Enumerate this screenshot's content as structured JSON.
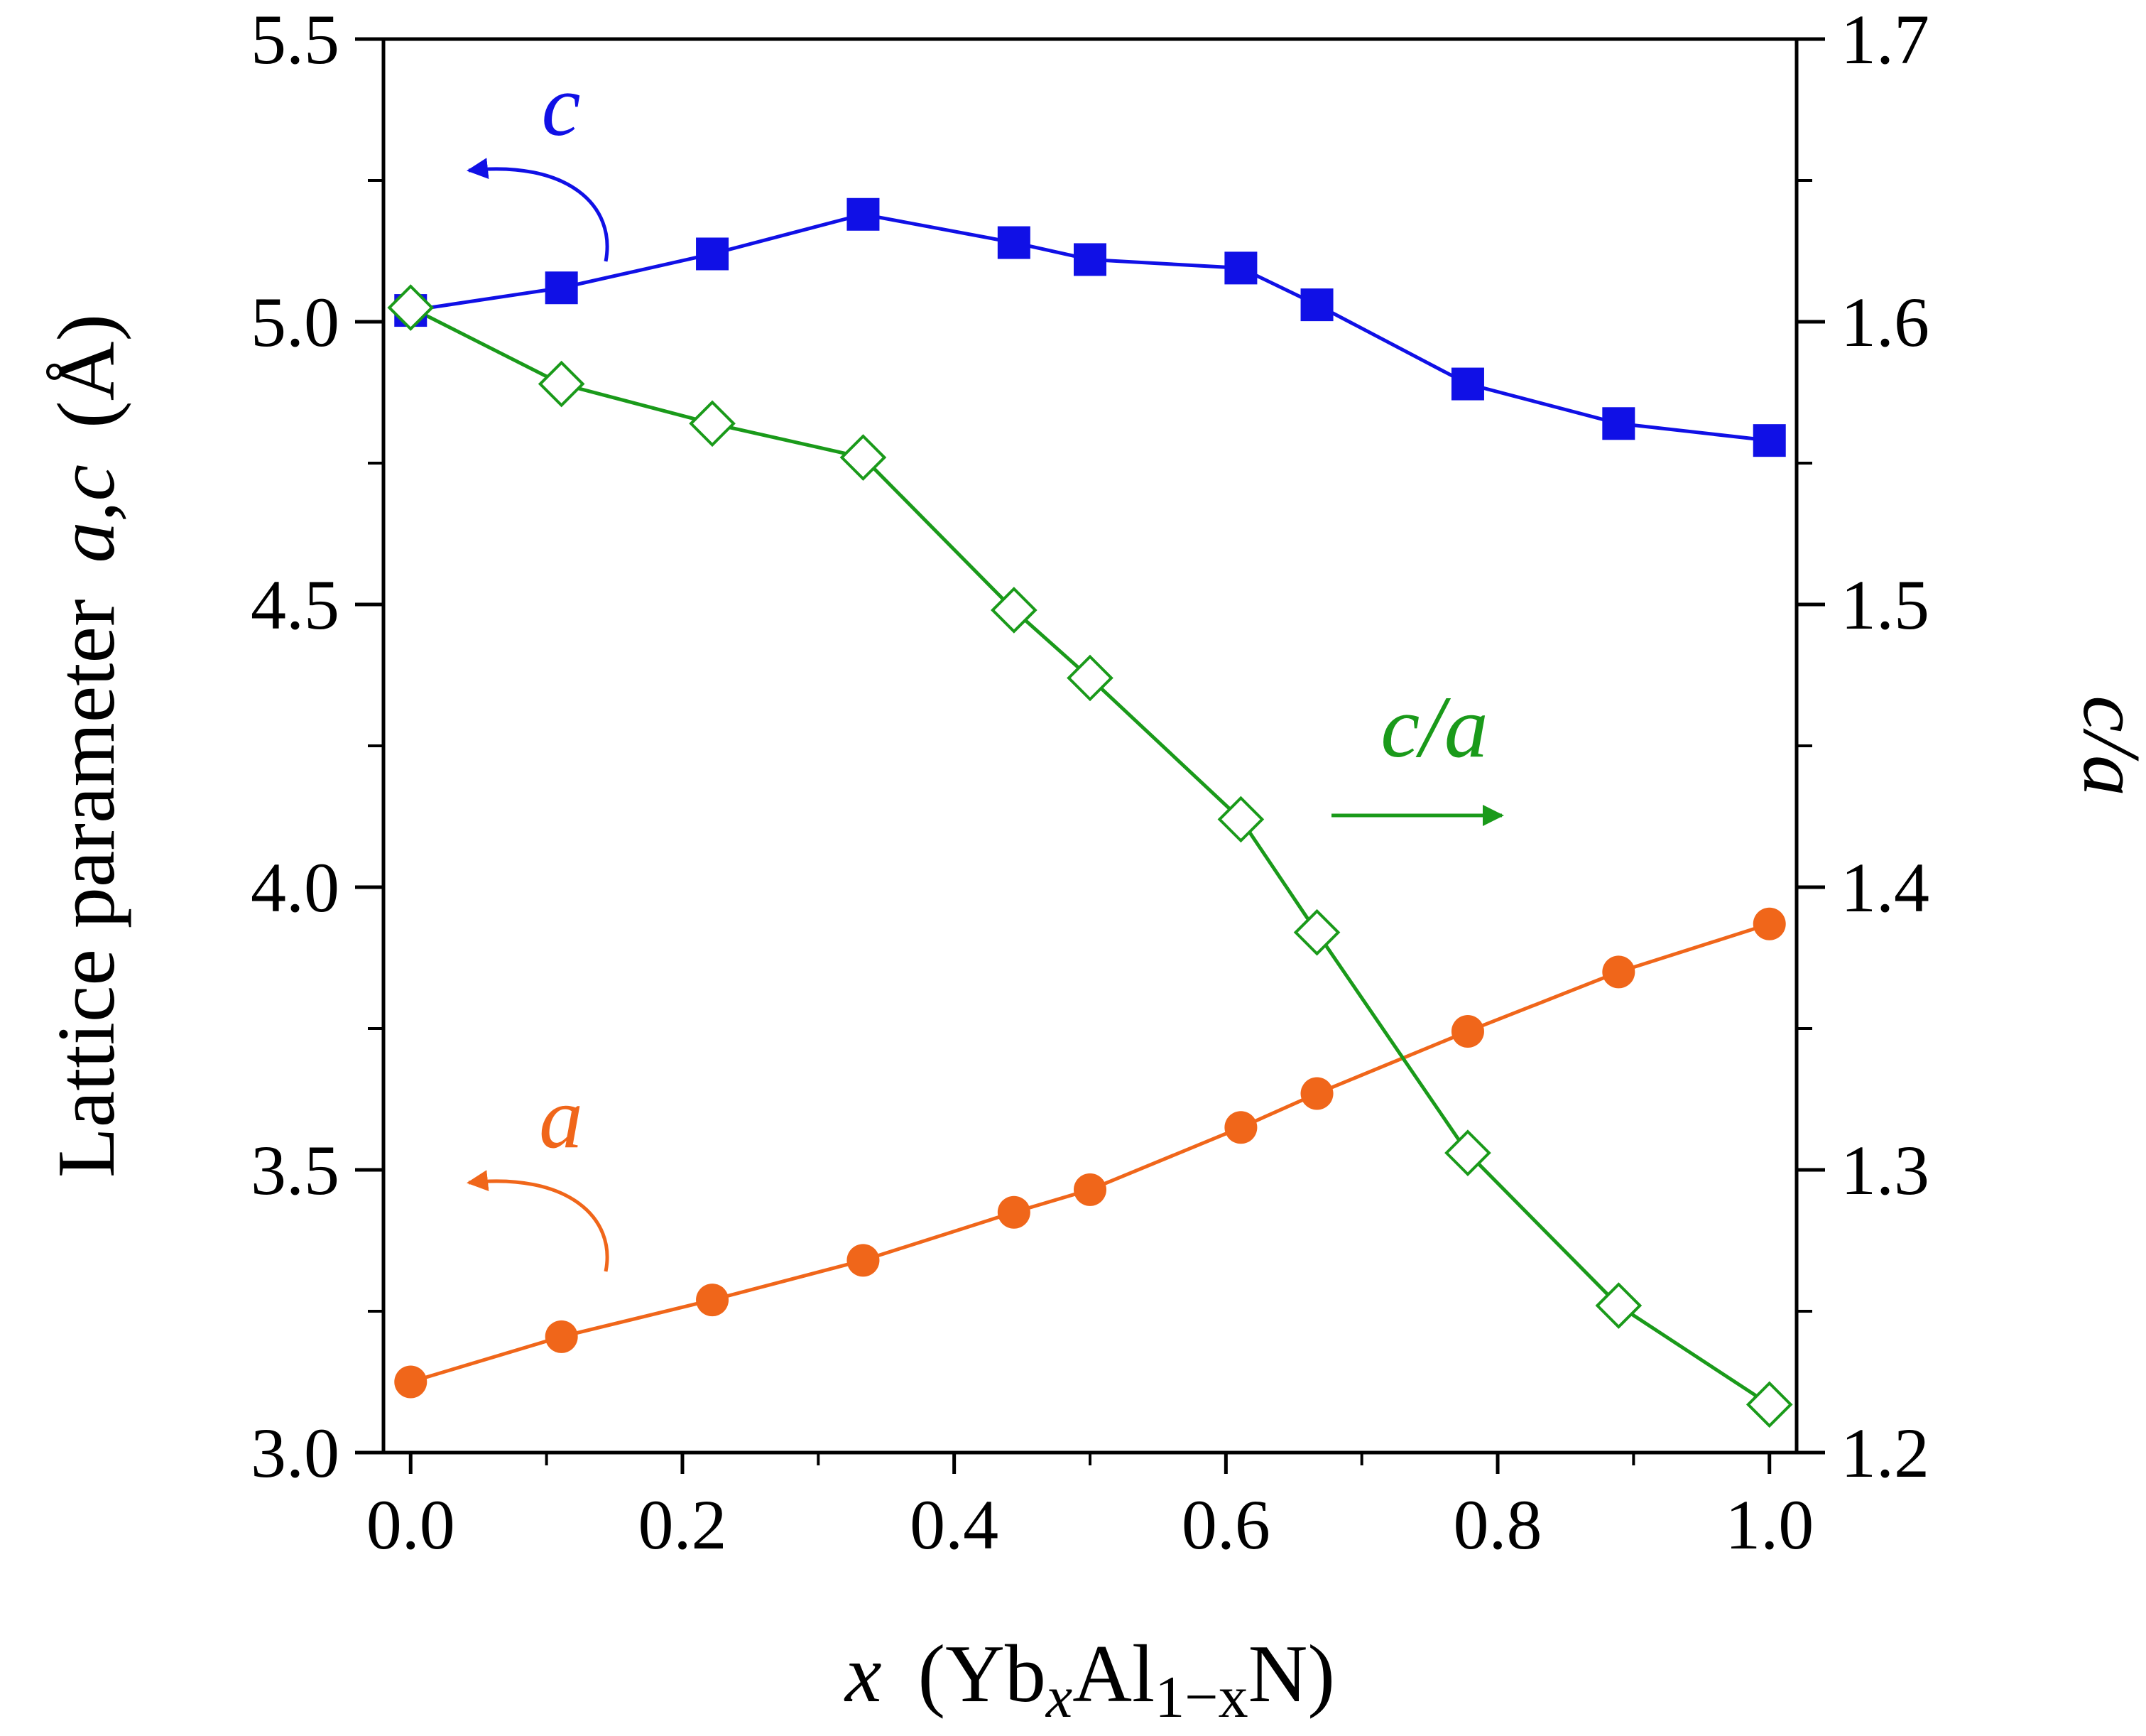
{
  "chart_data": {
    "type": "line",
    "x": [
      0.0,
      0.111,
      0.222,
      0.333,
      0.444,
      0.5,
      0.611,
      0.667,
      0.778,
      0.889,
      1.0
    ],
    "series": [
      {
        "name": "c",
        "axis": "left",
        "marker": "filled-square",
        "color": "#1010e6",
        "values": [
          5.02,
          5.06,
          5.12,
          5.19,
          5.14,
          5.11,
          5.095,
          5.03,
          4.89,
          4.82,
          4.79
        ]
      },
      {
        "name": "a",
        "axis": "left",
        "marker": "filled-circle",
        "color": "#f0661a",
        "values": [
          3.125,
          3.205,
          3.27,
          3.34,
          3.425,
          3.465,
          3.575,
          3.635,
          3.745,
          3.85,
          3.935
        ]
      },
      {
        "name": "c/a",
        "axis": "right",
        "marker": "open-diamond",
        "color": "#1a9a1a",
        "values": [
          1.605,
          1.578,
          1.564,
          1.552,
          1.498,
          1.474,
          1.424,
          1.384,
          1.306,
          1.252,
          1.217
        ]
      }
    ],
    "xlabel": {
      "var": "x",
      "open": "(Yb",
      "sub1": "x",
      "mid": "Al",
      "sub2": "1−x",
      "close": "N)"
    },
    "ylabel_left": {
      "text": "Lattice parameter",
      "vars": "a,c",
      "unit": "(Å)"
    },
    "ylabel_right": "c/a",
    "xlim": [
      -0.02,
      1.02
    ],
    "ylim_left": [
      3.0,
      5.5
    ],
    "ylim_right": [
      1.2,
      1.7
    ],
    "xticks": [
      "0.0",
      "0.2",
      "0.4",
      "0.6",
      "0.8",
      "1.0"
    ],
    "yticks_left": [
      "3.0",
      "3.5",
      "4.0",
      "4.5",
      "5.0",
      "5.5"
    ],
    "yticks_right": [
      "1.2",
      "1.3",
      "1.4",
      "1.5",
      "1.6",
      "1.7"
    ],
    "annotations": {
      "c": "c",
      "a": "a",
      "ca": "c/a"
    },
    "grid": false
  }
}
